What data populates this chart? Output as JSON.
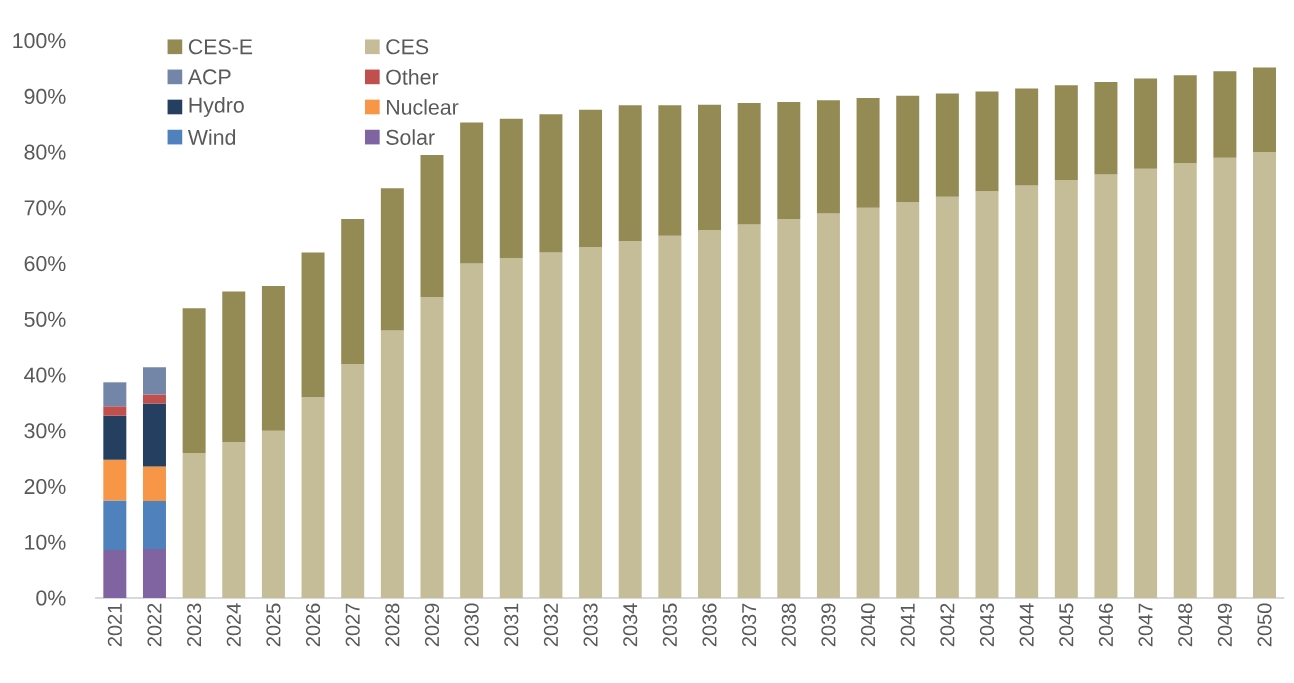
{
  "chart_data": {
    "type": "bar",
    "stacked": true,
    "categories": [
      "2021",
      "2022",
      "2023",
      "2024",
      "2025",
      "2026",
      "2027",
      "2028",
      "2029",
      "2030",
      "2031",
      "2032",
      "2033",
      "2034",
      "2035",
      "2036",
      "2037",
      "2038",
      "2039",
      "2040",
      "2041",
      "2042",
      "2043",
      "2044",
      "2045",
      "2046",
      "2047",
      "2048",
      "2049",
      "2050"
    ],
    "series": [
      {
        "name": "Solar",
        "color": "#8064a2",
        "values": [
          8.6,
          8.8,
          null,
          null,
          null,
          null,
          null,
          null,
          null,
          null,
          null,
          null,
          null,
          null,
          null,
          null,
          null,
          null,
          null,
          null,
          null,
          null,
          null,
          null,
          null,
          null,
          null,
          null,
          null,
          null
        ]
      },
      {
        "name": "Wind",
        "color": "#4f81bd",
        "values": [
          8.9,
          8.6,
          null,
          null,
          null,
          null,
          null,
          null,
          null,
          null,
          null,
          null,
          null,
          null,
          null,
          null,
          null,
          null,
          null,
          null,
          null,
          null,
          null,
          null,
          null,
          null,
          null,
          null,
          null,
          null
        ]
      },
      {
        "name": "Nuclear",
        "color": "#f79646",
        "values": [
          7.3,
          6.2,
          null,
          null,
          null,
          null,
          null,
          null,
          null,
          null,
          null,
          null,
          null,
          null,
          null,
          null,
          null,
          null,
          null,
          null,
          null,
          null,
          null,
          null,
          null,
          null,
          null,
          null,
          null,
          null
        ]
      },
      {
        "name": "Hydro",
        "color": "#243f60",
        "values": [
          7.9,
          11.3,
          null,
          null,
          null,
          null,
          null,
          null,
          null,
          null,
          null,
          null,
          null,
          null,
          null,
          null,
          null,
          null,
          null,
          null,
          null,
          null,
          null,
          null,
          null,
          null,
          null,
          null,
          null,
          null
        ]
      },
      {
        "name": "Other",
        "color": "#c0504d",
        "values": [
          1.7,
          1.6,
          null,
          null,
          null,
          null,
          null,
          null,
          null,
          null,
          null,
          null,
          null,
          null,
          null,
          null,
          null,
          null,
          null,
          null,
          null,
          null,
          null,
          null,
          null,
          null,
          null,
          null,
          null,
          null
        ]
      },
      {
        "name": "ACP",
        "color": "#7486a8",
        "values": [
          4.3,
          4.9,
          null,
          null,
          null,
          null,
          null,
          null,
          null,
          null,
          null,
          null,
          null,
          null,
          null,
          null,
          null,
          null,
          null,
          null,
          null,
          null,
          null,
          null,
          null,
          null,
          null,
          null,
          null,
          null
        ]
      },
      {
        "name": "CES",
        "color": "#c4bd97",
        "values": [
          null,
          null,
          26,
          28,
          30,
          36,
          42,
          48,
          54,
          60,
          61,
          62,
          63,
          64,
          65,
          66,
          67,
          68,
          69,
          70,
          71,
          72,
          73,
          74,
          75,
          76,
          77,
          78,
          79,
          80
        ]
      },
      {
        "name": "CES-E",
        "color": "#948a54",
        "values": [
          null,
          null,
          26,
          27,
          26,
          26,
          26,
          25.5,
          25.5,
          25.3,
          25,
          24.8,
          24.6,
          24.4,
          23.4,
          22.5,
          21.8,
          21,
          20.3,
          19.7,
          19.1,
          18.5,
          17.9,
          17.4,
          17,
          16.6,
          16.2,
          15.8,
          15.5,
          15.2
        ]
      }
    ],
    "ylim": [
      0,
      100
    ],
    "yticks": [
      {
        "value": 0,
        "label": "0%"
      },
      {
        "value": 10,
        "label": "10%"
      },
      {
        "value": 20,
        "label": "20%"
      },
      {
        "value": 30,
        "label": "30%"
      },
      {
        "value": 40,
        "label": "40%"
      },
      {
        "value": 50,
        "label": "50%"
      },
      {
        "value": 60,
        "label": "60%"
      },
      {
        "value": 70,
        "label": "70%"
      },
      {
        "value": 80,
        "label": "80%"
      },
      {
        "value": 90,
        "label": "90%"
      },
      {
        "value": 100,
        "label": "100%"
      }
    ],
    "legend": "top left"
  }
}
